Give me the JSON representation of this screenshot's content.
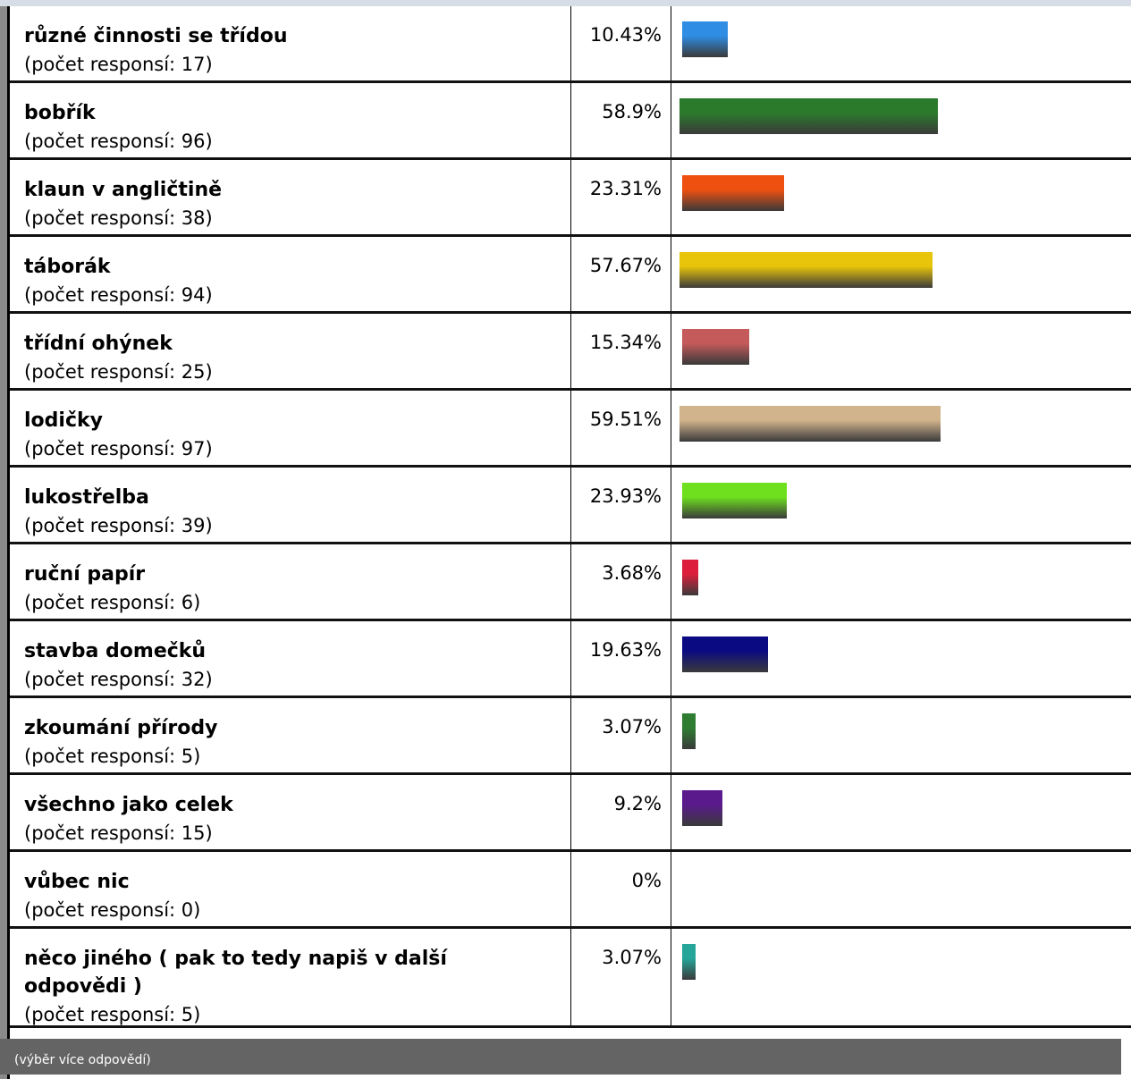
{
  "chart_data": {
    "type": "bar",
    "orientation": "horizontal",
    "count_label": "(počet responsí: {n})",
    "categories": [
      "různé činnosti se třídou",
      "bobřík",
      "klaun v angličtině",
      "táborák",
      "třídní ohýnek",
      "lodičky",
      "lukostřelba",
      "ruční papír",
      "stavba domečků",
      "zkoumání přírody",
      "všechno jako celek",
      "vůbec nic",
      "něco jiného ( pak to tedy napiš v další odpovědi )"
    ],
    "values": [
      10.43,
      58.9,
      23.31,
      57.67,
      15.34,
      59.51,
      23.93,
      3.68,
      19.63,
      3.07,
      9.2,
      0,
      3.07
    ],
    "value_labels": [
      "10.43%",
      "58.9%",
      "23.31%",
      "57.67%",
      "15.34%",
      "59.51%",
      "23.93%",
      "3.68%",
      "19.63%",
      "3.07%",
      "9.2%",
      "0%",
      "3.07%"
    ],
    "counts": [
      17,
      96,
      38,
      94,
      25,
      97,
      39,
      6,
      32,
      5,
      15,
      0,
      5
    ],
    "colors": [
      "#2f8de4",
      "#2b7a2b",
      "#f0500f",
      "#e8c40a",
      "#c45a5a",
      "#d2b48c",
      "#6ee01e",
      "#dc1e3c",
      "#0a0a82",
      "#2e7d32",
      "#5a1a8c",
      "#000000",
      "#26a69a"
    ],
    "xlim": [
      0,
      100
    ]
  },
  "footer": {
    "note": "(výběr více odpovědí)"
  }
}
